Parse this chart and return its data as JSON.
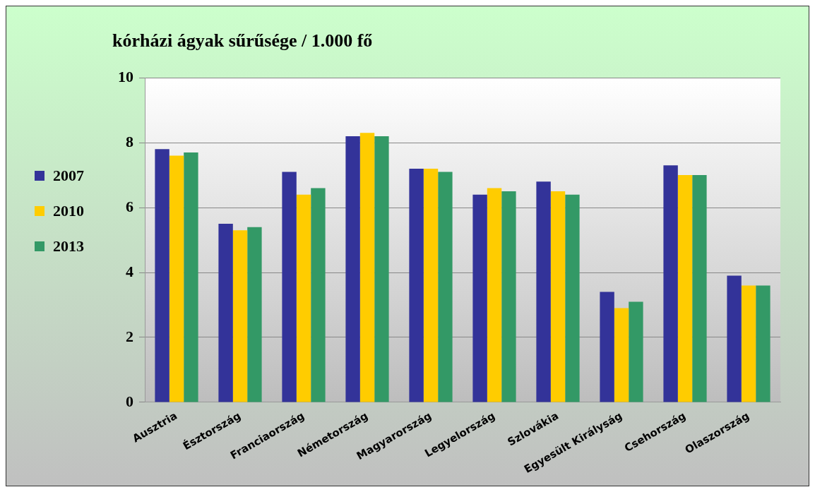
{
  "chart_data": {
    "type": "bar",
    "title": "kórházi ágyak sűrűsége / 1.000 fő",
    "categories": [
      "Ausztria",
      "Észtország",
      "Franciaország",
      "Németország",
      "Magyarország",
      "Legyelország",
      "Szlovákia",
      "Egyesült Királyság",
      "Csehország",
      "Olaszország"
    ],
    "series": [
      {
        "name": "2007",
        "color": "#333399",
        "values": [
          7.8,
          5.5,
          7.1,
          8.2,
          7.2,
          6.4,
          6.8,
          3.4,
          7.3,
          3.9
        ]
      },
      {
        "name": "2010",
        "color": "#ffcc00",
        "values": [
          7.6,
          5.3,
          6.4,
          8.3,
          7.2,
          6.6,
          6.5,
          2.9,
          7.0,
          3.6
        ]
      },
      {
        "name": "2013",
        "color": "#339966",
        "values": [
          7.7,
          5.4,
          6.6,
          8.2,
          7.1,
          6.5,
          6.4,
          3.1,
          7.0,
          3.6
        ]
      }
    ],
    "ylim": [
      0,
      10
    ],
    "yticks": [
      0,
      2,
      4,
      6,
      8,
      10
    ],
    "grid": "y",
    "legend": "left"
  }
}
